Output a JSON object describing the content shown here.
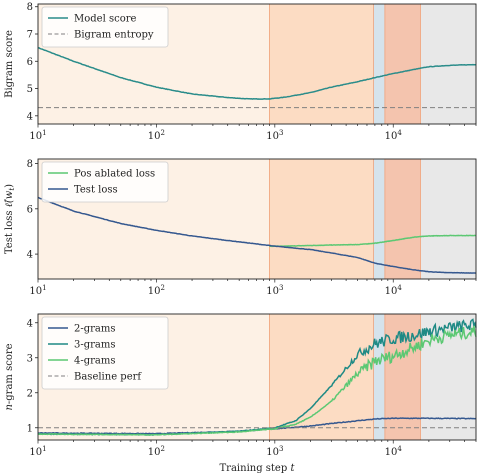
{
  "chart_data": [
    {
      "type": "line",
      "ylabel": "Bigram score",
      "xscale": "log",
      "xlim": [
        10,
        50000
      ],
      "ylim": [
        3.7,
        8.1
      ],
      "yticks": [
        4,
        5,
        6,
        7,
        8
      ],
      "legend_position": "top-left",
      "series": [
        {
          "name": "Model score",
          "color": "#2a8c8a",
          "style": "solid",
          "x": [
            10,
            20,
            50,
            100,
            200,
            400,
            600,
            900,
            1200,
            2000,
            3000,
            5000,
            7000,
            10000,
            15000,
            20000,
            30000,
            50000
          ],
          "y": [
            6.5,
            6.0,
            5.4,
            5.05,
            4.8,
            4.67,
            4.62,
            4.62,
            4.68,
            4.85,
            5.05,
            5.25,
            5.4,
            5.55,
            5.7,
            5.8,
            5.85,
            5.88
          ]
        },
        {
          "name": "Bigram entropy",
          "color": "#808080",
          "style": "dashed",
          "x": [
            10,
            50000
          ],
          "y": [
            4.3,
            4.3
          ]
        }
      ]
    },
    {
      "type": "line",
      "ylabel": "Test loss ℓ(w_t)",
      "ylabel_main": "Test loss ",
      "ylabel_math": "ℓ̂(w",
      "ylabel_sub": "t",
      "ylabel_close": ")",
      "xscale": "log",
      "xlim": [
        10,
        50000
      ],
      "ylim": [
        2.9,
        8.2
      ],
      "yticks": [
        4,
        6,
        8
      ],
      "legend_position": "top-left",
      "series": [
        {
          "name": "Pos ablated loss",
          "color": "#5cc873",
          "style": "solid",
          "x": [
            900,
            1200,
            2000,
            3000,
            5000,
            7000,
            10000,
            15000,
            20000,
            30000,
            50000
          ],
          "y": [
            4.35,
            4.35,
            4.38,
            4.4,
            4.42,
            4.48,
            4.6,
            4.75,
            4.8,
            4.82,
            4.82
          ]
        },
        {
          "name": "Test loss",
          "color": "#35588f",
          "style": "solid",
          "x": [
            10,
            20,
            50,
            100,
            200,
            400,
            700,
            1000,
            2000,
            3000,
            5000,
            7000,
            10000,
            15000,
            20000,
            30000,
            50000
          ],
          "y": [
            6.5,
            5.9,
            5.35,
            5.05,
            4.8,
            4.6,
            4.45,
            4.35,
            4.2,
            4.05,
            3.85,
            3.6,
            3.45,
            3.3,
            3.22,
            3.18,
            3.16
          ]
        }
      ]
    },
    {
      "type": "line",
      "ylabel": "n-gram score",
      "ylabel_italic": "n",
      "ylabel_rest": "-gram score",
      "xlabel": "Training step t",
      "xlabel_main": "Training step ",
      "xlabel_italic": "t",
      "xscale": "log",
      "xlim": [
        10,
        50000
      ],
      "ylim": [
        0.65,
        4.25
      ],
      "yticks": [
        1,
        2,
        3,
        4
      ],
      "legend_position": "top-left",
      "series": [
        {
          "name": "2-grams",
          "color": "#35588f",
          "style": "solid",
          "x": [
            10,
            100,
            500,
            1000,
            2000,
            3000,
            5000,
            7000,
            10000,
            20000,
            50000
          ],
          "y": [
            0.85,
            0.83,
            0.9,
            0.97,
            1.05,
            1.12,
            1.2,
            1.25,
            1.27,
            1.27,
            1.26
          ]
        },
        {
          "name": "3-grams",
          "color": "#1f8a85",
          "style": "solid",
          "x": [
            10,
            100,
            500,
            1000,
            1500,
            2000,
            3000,
            4000,
            5000,
            7000,
            10000,
            15000,
            20000,
            30000,
            50000
          ],
          "y": [
            0.82,
            0.8,
            0.9,
            1.0,
            1.2,
            1.55,
            2.2,
            2.7,
            3.1,
            3.4,
            3.55,
            3.65,
            3.75,
            3.85,
            3.95
          ]
        },
        {
          "name": "4-grams",
          "color": "#5cc873",
          "style": "solid",
          "x": [
            10,
            100,
            500,
            1000,
            1500,
            2000,
            3000,
            4000,
            5000,
            7000,
            10000,
            15000,
            20000,
            30000,
            50000
          ],
          "y": [
            0.82,
            0.8,
            0.88,
            0.97,
            1.1,
            1.3,
            1.75,
            2.2,
            2.55,
            2.9,
            3.05,
            3.3,
            3.5,
            3.65,
            3.75
          ]
        },
        {
          "name": "Baseline perf",
          "color": "#808080",
          "style": "dashed",
          "x": [
            10,
            50000
          ],
          "y": [
            1.0,
            1.0
          ]
        }
      ]
    }
  ],
  "shared": {
    "x_ticks": [
      {
        "value": 10,
        "base": "10",
        "exp": "1"
      },
      {
        "value": 100,
        "base": "10",
        "exp": "2"
      },
      {
        "value": 1000,
        "base": "10",
        "exp": "3"
      },
      {
        "value": 10000,
        "base": "10",
        "exp": "4"
      }
    ],
    "phases": [
      {
        "from": 10,
        "to": 900,
        "color": "#fdf1e5"
      },
      {
        "from": 900,
        "to": 6800,
        "color": "#fcdcc3"
      },
      {
        "from": 6800,
        "to": 8500,
        "color": "#d5e3ec"
      },
      {
        "from": 8500,
        "to": 17000,
        "color": "#f4c4ae"
      },
      {
        "from": 17000,
        "to": 50000,
        "color": "#e8e8e8"
      }
    ],
    "boundary_color": "#f0a27a",
    "noisy_from": 2500
  }
}
